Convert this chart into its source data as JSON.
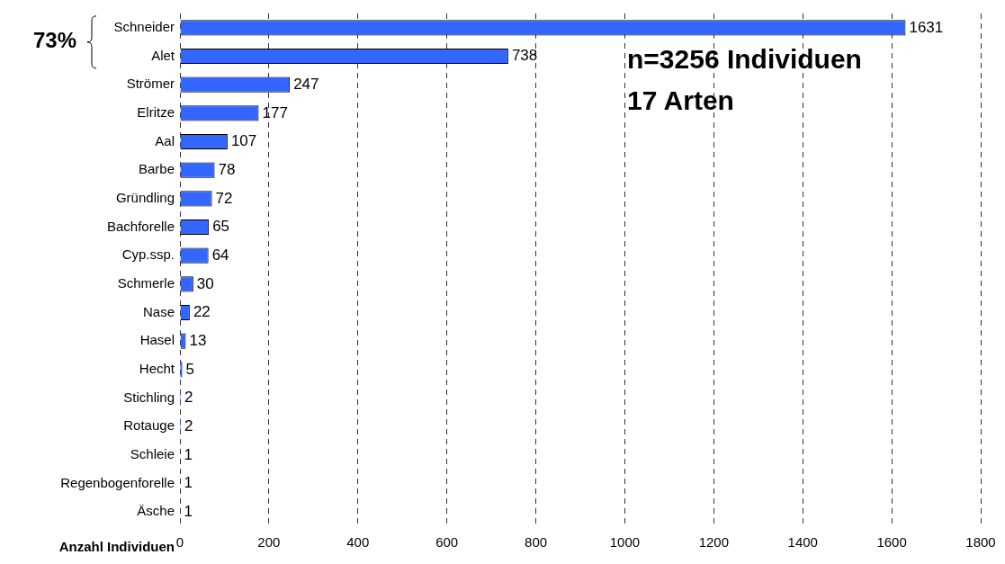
{
  "chart_data": {
    "type": "bar",
    "orientation": "horizontal",
    "xlabel": "Anzahl Individuen",
    "categories": [
      "Schneider",
      "Alet",
      "Strömer",
      "Elritze",
      "Aal",
      "Barbe",
      "Gründling",
      "Bachforelle",
      "Cyp.ssp.",
      "Schmerle",
      "Nase",
      "Hasel",
      "Hecht",
      "Stichling",
      "Rotauge",
      "Schleie",
      "Regenbogenforelle",
      "Äsche"
    ],
    "values": [
      1631,
      738,
      247,
      177,
      107,
      78,
      72,
      65,
      64,
      30,
      22,
      13,
      5,
      2,
      2,
      1,
      1,
      1
    ],
    "color": "#3366ff",
    "xlim": [
      0,
      1800
    ],
    "xticks": [
      0,
      200,
      400,
      600,
      800,
      1000,
      1200,
      1400,
      1600,
      1800
    ],
    "grid": "x",
    "legend": false,
    "data_labels": true,
    "annotations": [
      "73%",
      "n=3256 Individuen",
      "17 Arten"
    ]
  }
}
